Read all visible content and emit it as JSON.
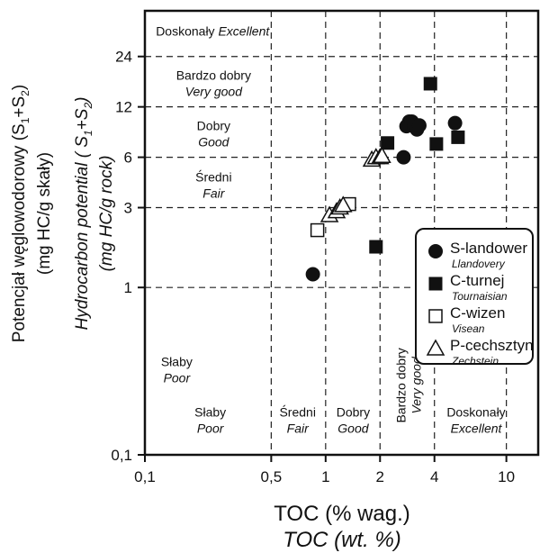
{
  "chart_data": {
    "type": "scatter",
    "x_scale": "log",
    "y_scale": "log",
    "xlim": [
      0.1,
      15
    ],
    "ylim": [
      0.1,
      45
    ],
    "x_ticks": [
      {
        "value": 0.1,
        "label": "0,1"
      },
      {
        "value": 0.5,
        "label": "0,5"
      },
      {
        "value": 1,
        "label": "1"
      },
      {
        "value": 2,
        "label": "2"
      },
      {
        "value": 4,
        "label": "4"
      },
      {
        "value": 10,
        "label": "10"
      }
    ],
    "y_ticks": [
      {
        "value": 0.1,
        "label": "0,1"
      },
      {
        "value": 1,
        "label": "1"
      },
      {
        "value": 3,
        "label": "3"
      },
      {
        "value": 6,
        "label": "6"
      },
      {
        "value": 12,
        "label": "12"
      },
      {
        "value": 24,
        "label": "24"
      }
    ],
    "xlabel": "TOC (% wag.)",
    "xlabel_en": "TOC (wt. %)",
    "ylabel": [
      "Potencjał węglowodorowy (S1+S2)",
      "(mg HC/g skały)"
    ],
    "ylabel_en": [
      "Hydrocarbon potential ( S1+S2)",
      "(mg HC/g rock)"
    ],
    "y_zones": [
      {
        "x": 0.115,
        "y": 34,
        "pl": "Doskonały",
        "en": "Excellent",
        "layout": "inline"
      },
      {
        "x": 0.24,
        "y": 17,
        "pl": "Bardzo dobry",
        "en": "Very good"
      },
      {
        "x": 0.24,
        "y": 8.5,
        "pl": "Dobry",
        "en": "Good"
      },
      {
        "x": 0.24,
        "y": 4.2,
        "pl": "Średni",
        "en": "Fair"
      },
      {
        "x": 0.15,
        "y": 0.33,
        "pl": "Słaby",
        "en": "Poor"
      }
    ],
    "x_zones": [
      {
        "x": 0.23,
        "y": 0.165,
        "pl": "Słaby",
        "en": "Poor"
      },
      {
        "x": 0.7,
        "y": 0.165,
        "pl": "Średni",
        "en": "Fair"
      },
      {
        "x": 1.42,
        "y": 0.165,
        "pl": "Dobry",
        "en": "Good"
      },
      {
        "x": 2.9,
        "y": 0.26,
        "pl": "Bardzo dobry",
        "en": "Very good",
        "rotate": true
      },
      {
        "x": 6.8,
        "y": 0.165,
        "pl": "Doskonały",
        "en": "Excellent"
      }
    ],
    "series": [
      {
        "name": "S-landower",
        "name_en": "Llandovery",
        "marker": "circle-filled",
        "points": [
          [
            0.85,
            1.2
          ],
          [
            2.7,
            6
          ],
          [
            2.8,
            9.2
          ],
          [
            2.9,
            9.8
          ],
          [
            3.0,
            9.8
          ],
          [
            3.1,
            9.3
          ],
          [
            3.2,
            8.8
          ],
          [
            3.3,
            9.3
          ],
          [
            5.2,
            9.6
          ]
        ]
      },
      {
        "name": "C-turnej",
        "name_en": "Tournaisian",
        "marker": "square-filled",
        "points": [
          [
            1.9,
            1.75
          ],
          [
            2.2,
            7.3
          ],
          [
            3.8,
            16.5
          ],
          [
            4.1,
            7.2
          ],
          [
            5.4,
            7.9
          ]
        ]
      },
      {
        "name": "C-wizen",
        "name_en": "Visean",
        "marker": "square-open",
        "points": [
          [
            0.9,
            2.2
          ],
          [
            1.35,
            3.15
          ]
        ]
      },
      {
        "name": "P-cechsztyn",
        "name_en": "Zechstein",
        "marker": "triangle-open",
        "points": [
          [
            1.05,
            2.7
          ],
          [
            1.15,
            2.85
          ],
          [
            1.2,
            3.0
          ],
          [
            1.25,
            3.1
          ],
          [
            1.8,
            5.8
          ],
          [
            1.9,
            6.0
          ],
          [
            2.0,
            6.0
          ],
          [
            2.05,
            6.1
          ]
        ]
      }
    ]
  }
}
